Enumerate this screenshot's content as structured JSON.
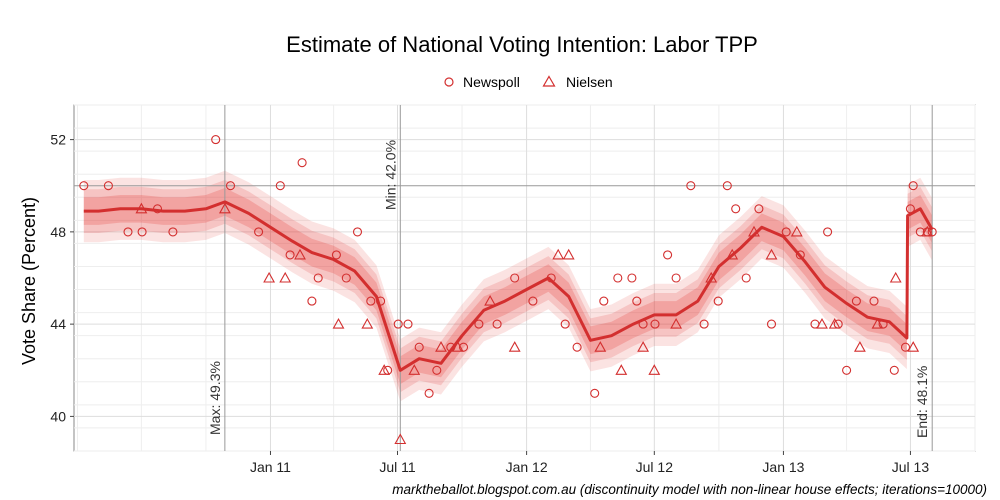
{
  "chart_data": {
    "type": "line",
    "title": "Estimate of National Voting Intention: Labor TPP",
    "ylabel": "Vote Share (Percent)",
    "xlabel": "",
    "caption": "marktheballot.blogspot.com.au (discontinuity model with non-linear house effects; iterations=10000)",
    "ylim": [
      38.5,
      53.5
    ],
    "xlim": [
      "2010-03-27",
      "2013-10-01"
    ],
    "y_ticks": [
      40,
      44,
      48,
      52
    ],
    "y_tick_labels": [
      "40",
      "44",
      "48",
      "52"
    ],
    "x_ticks": [
      "2011-01-01",
      "2011-07-01",
      "2012-01-01",
      "2012-07-01",
      "2013-01-01",
      "2013-07-01"
    ],
    "x_tick_labels": [
      "Jan 11",
      "Jul 11",
      "Jan 12",
      "Jul 12",
      "Jan 13",
      "Jul 13"
    ],
    "grid": true,
    "legend_position": "top",
    "legend": [
      {
        "name": "Newspoll",
        "marker": "circle"
      },
      {
        "name": "Nielsen",
        "marker": "triangle"
      }
    ],
    "colors": {
      "line": "#d32f2f",
      "band": "#e53935",
      "marker": "#d32f2f",
      "ref_line": "#999999"
    },
    "reference_hline": 50,
    "reference_lines": [
      {
        "date": "2010-10-28",
        "label": "Max: 49.3%"
      },
      {
        "date": "2011-07-05",
        "label": "Min: 42.0%"
      },
      {
        "date": "2013-08-01",
        "label": "End: 48.1%"
      }
    ],
    "series": [
      {
        "name": "Labor TPP estimate",
        "x": [
          "2010-04-10",
          "2010-05-01",
          "2010-06-01",
          "2010-07-01",
          "2010-08-01",
          "2010-09-01",
          "2010-10-01",
          "2010-10-28",
          "2010-12-01",
          "2011-01-01",
          "2011-02-01",
          "2011-03-01",
          "2011-04-01",
          "2011-05-01",
          "2011-06-01",
          "2011-07-05",
          "2011-08-01",
          "2011-09-01",
          "2011-10-01",
          "2011-11-01",
          "2011-12-01",
          "2012-01-01",
          "2012-02-01",
          "2012-03-01",
          "2012-04-01",
          "2012-05-01",
          "2012-06-01",
          "2012-07-01",
          "2012-08-01",
          "2012-09-01",
          "2012-10-01",
          "2012-11-01",
          "2012-12-01",
          "2013-01-01",
          "2013-02-01",
          "2013-03-01",
          "2013-04-01",
          "2013-05-01",
          "2013-06-01",
          "2013-06-26",
          "2013-06-27",
          "2013-07-15",
          "2013-08-01"
        ],
        "values": [
          48.9,
          48.9,
          49.0,
          49.0,
          48.9,
          48.9,
          49.0,
          49.3,
          48.8,
          48.2,
          47.6,
          47.1,
          46.8,
          46.3,
          45.2,
          42.0,
          42.5,
          42.3,
          43.5,
          44.6,
          45.0,
          45.5,
          46.0,
          45.2,
          43.3,
          43.5,
          44.0,
          44.4,
          44.4,
          45.0,
          46.5,
          47.3,
          48.2,
          47.8,
          46.7,
          45.6,
          44.9,
          44.3,
          44.1,
          43.4,
          48.7,
          49.0,
          48.1
        ]
      },
      {
        "name": "Newspoll",
        "marker": "circle",
        "x": [
          "2010-04-10",
          "2010-05-15",
          "2010-06-12",
          "2010-07-02",
          "2010-07-24",
          "2010-08-15",
          "2010-10-15",
          "2010-11-05",
          "2010-12-15",
          "2011-01-15",
          "2011-01-29",
          "2011-02-15",
          "2011-03-01",
          "2011-03-10",
          "2011-04-05",
          "2011-04-19",
          "2011-05-05",
          "2011-05-24",
          "2011-06-07",
          "2011-06-17",
          "2011-07-02",
          "2011-07-16",
          "2011-08-01",
          "2011-08-15",
          "2011-08-26",
          "2011-09-15",
          "2011-10-03",
          "2011-10-25",
          "2011-11-20",
          "2011-12-15",
          "2012-01-10",
          "2012-02-05",
          "2012-02-25",
          "2012-03-13",
          "2012-04-07",
          "2012-04-20",
          "2012-05-10",
          "2012-05-30",
          "2012-06-06",
          "2012-06-15",
          "2012-07-02",
          "2012-07-20",
          "2012-08-01",
          "2012-08-22",
          "2012-09-10",
          "2012-09-30",
          "2012-10-13",
          "2012-10-25",
          "2012-11-09",
          "2012-11-27",
          "2012-12-15",
          "2013-01-05",
          "2013-01-25",
          "2013-02-15",
          "2013-03-05",
          "2013-03-20",
          "2013-04-01",
          "2013-04-15",
          "2013-05-10",
          "2013-05-23",
          "2013-06-08",
          "2013-06-24",
          "2013-07-01",
          "2013-07-05",
          "2013-07-15",
          "2013-07-25",
          "2013-08-01"
        ],
        "values": [
          50,
          50,
          48,
          48,
          49,
          48,
          52,
          50,
          48,
          50,
          47,
          51,
          45,
          46,
          47,
          46,
          48,
          45,
          45,
          42,
          44,
          44,
          43,
          41,
          42,
          43,
          43,
          44,
          44,
          46,
          45,
          46,
          44,
          43,
          41,
          45,
          46,
          46,
          45,
          44,
          44,
          47,
          46,
          50,
          44,
          45,
          50,
          49,
          46,
          49,
          44,
          48,
          47,
          44,
          48,
          44,
          42,
          45,
          45,
          44,
          42,
          43,
          49,
          50,
          48,
          48,
          48
        ]
      },
      {
        "name": "Nielsen",
        "marker": "triangle",
        "x": [
          "2010-07-01",
          "2010-10-28",
          "2010-12-30",
          "2011-01-22",
          "2011-02-12",
          "2011-04-08",
          "2011-05-19",
          "2011-06-12",
          "2011-07-05",
          "2011-07-25",
          "2011-09-01",
          "2011-09-25",
          "2011-11-10",
          "2011-12-15",
          "2012-02-15",
          "2012-03-01",
          "2012-04-15",
          "2012-05-15",
          "2012-06-15",
          "2012-07-01",
          "2012-08-01",
          "2012-09-20",
          "2012-10-20",
          "2012-11-20",
          "2012-12-15",
          "2013-01-20",
          "2013-02-25",
          "2013-03-15",
          "2013-04-20",
          "2013-05-15",
          "2013-06-10",
          "2013-07-05",
          "2013-07-25"
        ],
        "values": [
          49,
          49,
          46,
          46,
          47,
          44,
          44,
          42,
          39,
          42,
          43,
          43,
          45,
          43,
          47,
          47,
          43,
          42,
          43,
          42,
          44,
          46,
          47,
          48,
          47,
          48,
          44,
          44,
          43,
          44,
          46,
          43,
          48
        ]
      }
    ]
  }
}
